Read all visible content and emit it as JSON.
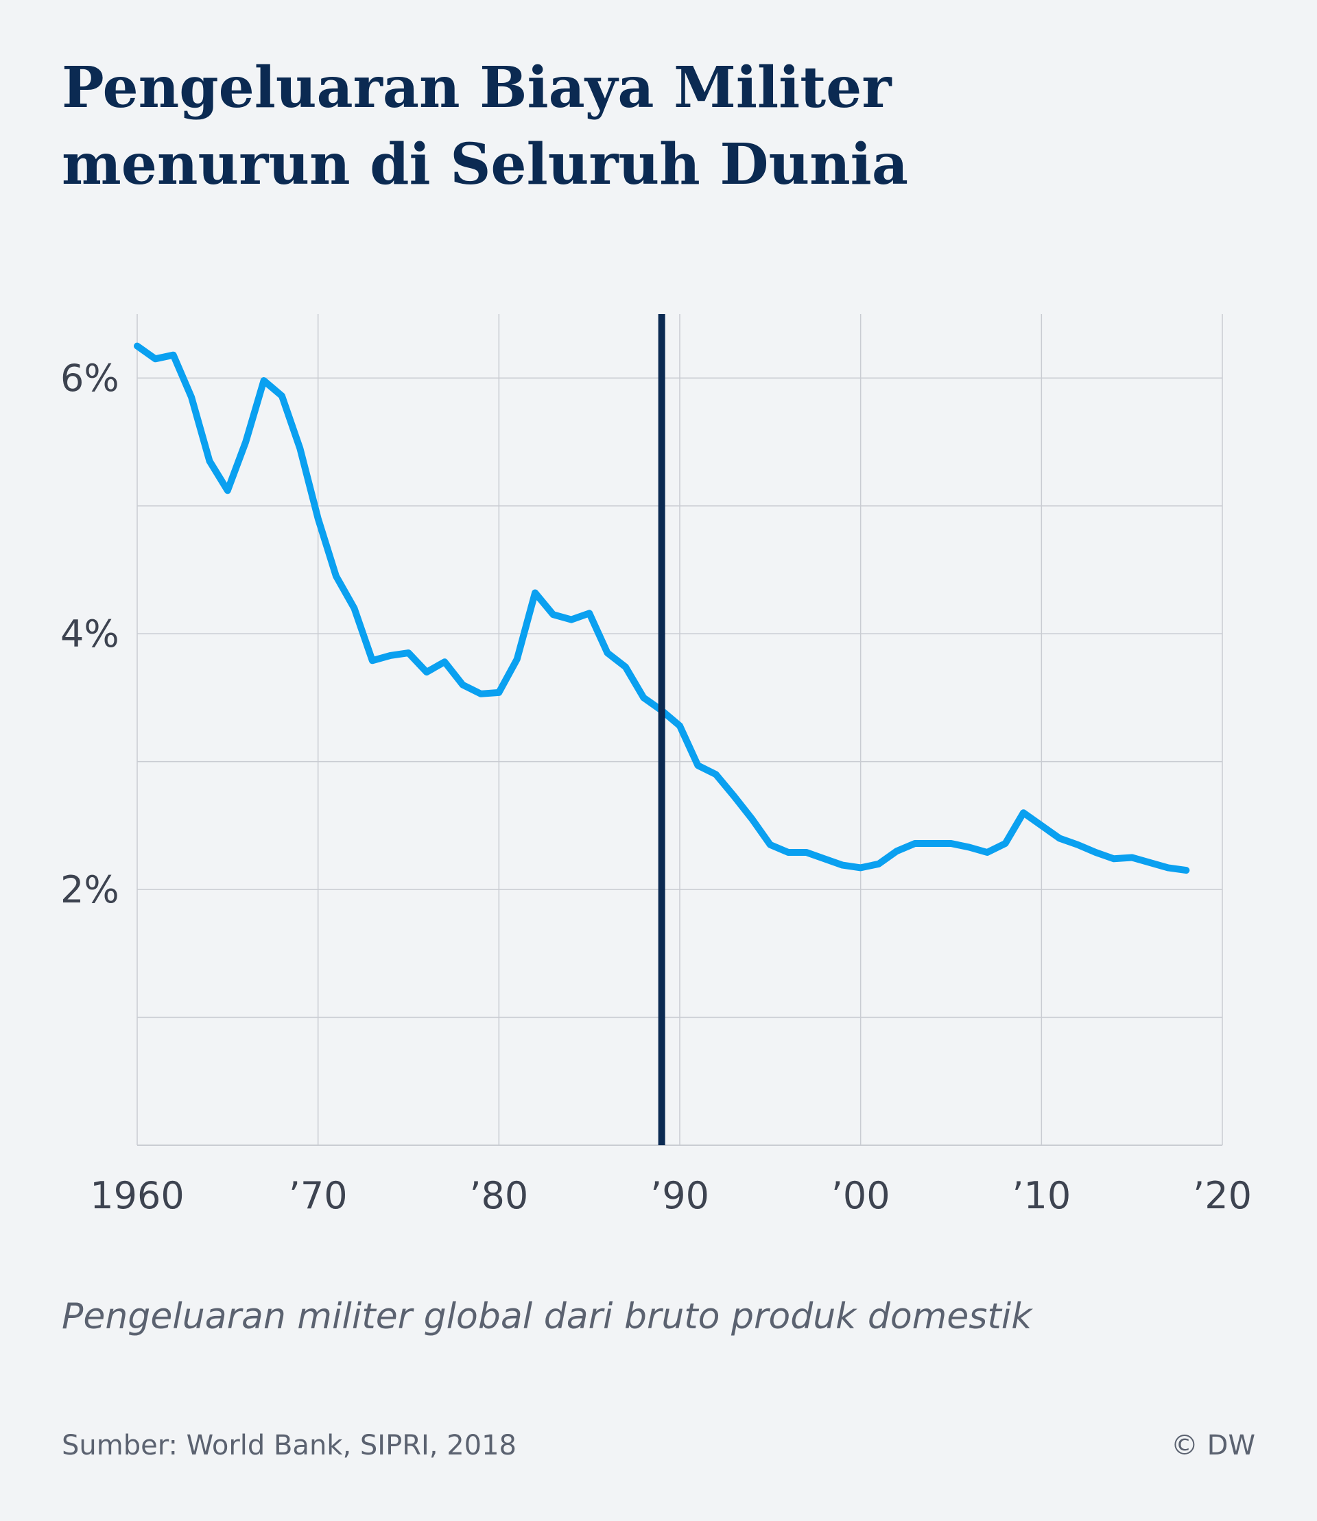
{
  "header": {
    "title_line1": "Pengeluaran Biaya Militer",
    "title_line2": "menurun di Seluruh Dunia"
  },
  "footer": {
    "subtitle": "Pengeluaran militer global dari bruto produk domestik",
    "source": "Sumber: World Bank, SIPRI, 2018",
    "copyright": "© DW"
  },
  "colors": {
    "background": "#f2f4f6",
    "title": "#0b2a52",
    "line": "#0aa0f0",
    "marker": "#0b2a52",
    "grid": "#c9ccd2",
    "text": "#3d4350"
  },
  "chart_data": {
    "type": "line",
    "title": "",
    "xlabel": "",
    "ylabel": "",
    "xlim": [
      1960,
      2020
    ],
    "ylim": [
      0,
      6.5
    ],
    "grid": true,
    "x_ticks": [
      {
        "value": 1960,
        "label": "1960"
      },
      {
        "value": 1970,
        "label": "’70"
      },
      {
        "value": 1980,
        "label": "’80"
      },
      {
        "value": 1990,
        "label": "’90"
      },
      {
        "value": 2000,
        "label": "’00"
      },
      {
        "value": 2010,
        "label": "’10"
      },
      {
        "value": 2020,
        "label": "’20"
      }
    ],
    "y_ticks": [
      {
        "value": 2,
        "label": "2%"
      },
      {
        "value": 4,
        "label": "4%"
      },
      {
        "value": 6,
        "label": "6%"
      }
    ],
    "y_gridlines": [
      1,
      2,
      3,
      4,
      5,
      6
    ],
    "marker_line": {
      "x": 1989
    },
    "series": [
      {
        "values": [
          {
            "x": 1960,
            "y": 6.25
          },
          {
            "x": 1961,
            "y": 6.15
          },
          {
            "x": 1962,
            "y": 6.18
          },
          {
            "x": 1963,
            "y": 5.85
          },
          {
            "x": 1964,
            "y": 5.35
          },
          {
            "x": 1965,
            "y": 5.12
          },
          {
            "x": 1966,
            "y": 5.5
          },
          {
            "x": 1967,
            "y": 5.98
          },
          {
            "x": 1968,
            "y": 5.86
          },
          {
            "x": 1969,
            "y": 5.45
          },
          {
            "x": 1970,
            "y": 4.9
          },
          {
            "x": 1971,
            "y": 4.45
          },
          {
            "x": 1972,
            "y": 4.2
          },
          {
            "x": 1973,
            "y": 3.79
          },
          {
            "x": 1974,
            "y": 3.83
          },
          {
            "x": 1975,
            "y": 3.85
          },
          {
            "x": 1976,
            "y": 3.7
          },
          {
            "x": 1977,
            "y": 3.78
          },
          {
            "x": 1978,
            "y": 3.6
          },
          {
            "x": 1979,
            "y": 3.53
          },
          {
            "x": 1980,
            "y": 3.54
          },
          {
            "x": 1981,
            "y": 3.8
          },
          {
            "x": 1982,
            "y": 4.32
          },
          {
            "x": 1983,
            "y": 4.15
          },
          {
            "x": 1984,
            "y": 4.11
          },
          {
            "x": 1985,
            "y": 4.16
          },
          {
            "x": 1986,
            "y": 3.85
          },
          {
            "x": 1987,
            "y": 3.74
          },
          {
            "x": 1988,
            "y": 3.5
          },
          {
            "x": 1989,
            "y": 3.4
          },
          {
            "x": 1990,
            "y": 3.28
          },
          {
            "x": 1991,
            "y": 2.97
          },
          {
            "x": 1992,
            "y": 2.9
          },
          {
            "x": 1993,
            "y": 2.73
          },
          {
            "x": 1994,
            "y": 2.55
          },
          {
            "x": 1995,
            "y": 2.35
          },
          {
            "x": 1996,
            "y": 2.29
          },
          {
            "x": 1997,
            "y": 2.29
          },
          {
            "x": 1998,
            "y": 2.24
          },
          {
            "x": 1999,
            "y": 2.19
          },
          {
            "x": 2000,
            "y": 2.17
          },
          {
            "x": 2001,
            "y": 2.2
          },
          {
            "x": 2002,
            "y": 2.3
          },
          {
            "x": 2003,
            "y": 2.36
          },
          {
            "x": 2004,
            "y": 2.36
          },
          {
            "x": 2005,
            "y": 2.36
          },
          {
            "x": 2006,
            "y": 2.33
          },
          {
            "x": 2007,
            "y": 2.29
          },
          {
            "x": 2008,
            "y": 2.36
          },
          {
            "x": 2009,
            "y": 2.6
          },
          {
            "x": 2010,
            "y": 2.5
          },
          {
            "x": 2011,
            "y": 2.4
          },
          {
            "x": 2012,
            "y": 2.35
          },
          {
            "x": 2013,
            "y": 2.29
          },
          {
            "x": 2014,
            "y": 2.24
          },
          {
            "x": 2015,
            "y": 2.25
          },
          {
            "x": 2016,
            "y": 2.21
          },
          {
            "x": 2017,
            "y": 2.17
          },
          {
            "x": 2018,
            "y": 2.15
          }
        ]
      }
    ]
  }
}
